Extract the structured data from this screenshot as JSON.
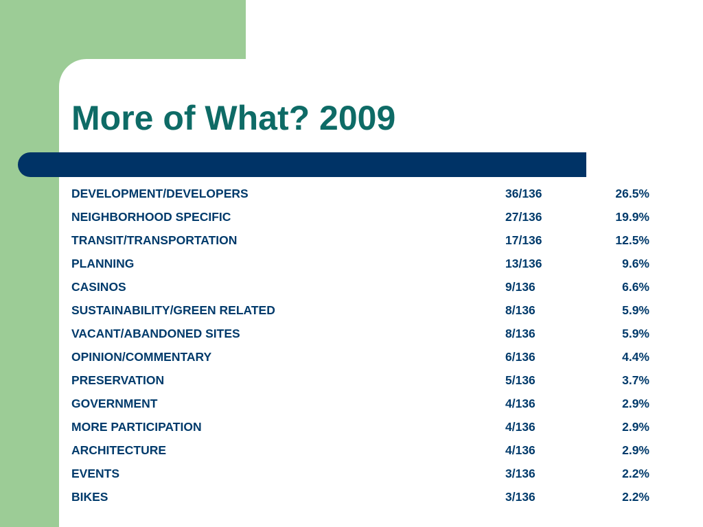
{
  "slide": {
    "title": "More of What? 2009"
  },
  "colors": {
    "side_green": "#9ccc96",
    "title_teal": "#0e6b66",
    "bar_navy": "#003366",
    "text_navy": "#003a6b"
  },
  "table": {
    "rows": [
      {
        "label": "DEVELOPMENT/DEVELOPERS",
        "count": "36/136",
        "percent": "26.5%"
      },
      {
        "label": "NEIGHBORHOOD SPECIFIC",
        "count": "27/136",
        "percent": "19.9%"
      },
      {
        "label": "TRANSIT/TRANSPORTATION",
        "count": "17/136",
        "percent": "12.5%"
      },
      {
        "label": "PLANNING",
        "count": "13/136",
        "percent": "9.6%"
      },
      {
        "label": "CASINOS",
        "count": "9/136",
        "percent": "6.6%"
      },
      {
        "label": "SUSTAINABILITY/GREEN RELATED",
        "count": "8/136",
        "percent": "5.9%"
      },
      {
        "label": "VACANT/ABANDONED SITES",
        "count": "8/136",
        "percent": "5.9%"
      },
      {
        "label": "OPINION/COMMENTARY",
        "count": "6/136",
        "percent": "4.4%"
      },
      {
        "label": "PRESERVATION",
        "count": "5/136",
        "percent": "3.7%"
      },
      {
        "label": "GOVERNMENT",
        "count": "4/136",
        "percent": "2.9%"
      },
      {
        "label": "MORE PARTICIPATION",
        "count": "4/136",
        "percent": "2.9%"
      },
      {
        "label": "ARCHITECTURE",
        "count": "4/136",
        "percent": "2.9%"
      },
      {
        "label": "EVENTS",
        "count": "3/136",
        "percent": "2.2%"
      },
      {
        "label": "BIKES",
        "count": "3/136",
        "percent": "2.2%"
      }
    ]
  }
}
